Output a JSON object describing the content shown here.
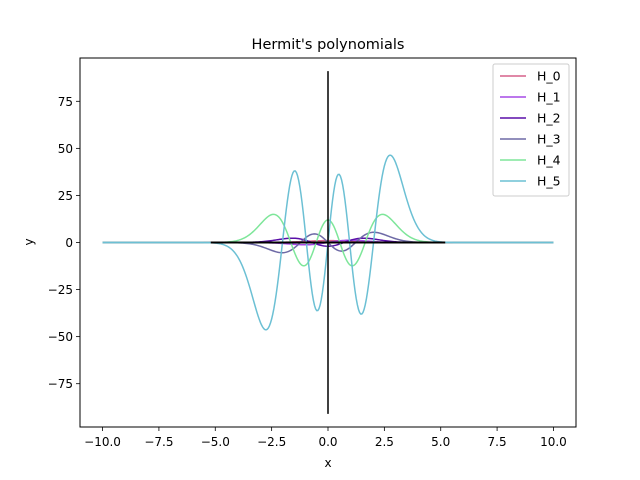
{
  "chart_data": {
    "type": "line",
    "title": "Hermit's polynomials",
    "xlabel": "x",
    "ylabel": "y",
    "xlim": [
      -11.0,
      11.0
    ],
    "ylim": [
      -98,
      98
    ],
    "x_ticks": [
      -10.0,
      -7.5,
      -5.0,
      -2.5,
      0.0,
      2.5,
      5.0,
      7.5,
      10.0
    ],
    "x_tick_labels": [
      "−10.0",
      "−7.5",
      "−5.0",
      "−2.5",
      "0.0",
      "2.5",
      "5.0",
      "7.5",
      "10.0"
    ],
    "y_ticks": [
      -75,
      -50,
      -25,
      0,
      25,
      50,
      75
    ],
    "y_tick_labels": [
      "−75",
      "−50",
      "−25",
      "0",
      "25",
      "50",
      "75"
    ],
    "grid": false,
    "legend_position": "top-right",
    "function": "H_n(x) * exp(-x^2/2)",
    "x_range": [
      -10.0,
      10.0
    ],
    "series": [
      {
        "name": "H_0",
        "order": 0,
        "color": "#d6608a"
      },
      {
        "name": "H_1",
        "order": 1,
        "color": "#a64ae6"
      },
      {
        "name": "H_2",
        "order": 2,
        "color": "#5a0fa8"
      },
      {
        "name": "H_3",
        "order": 3,
        "color": "#6e6aa6"
      },
      {
        "name": "H_4",
        "order": 4,
        "color": "#7ee69a"
      },
      {
        "name": "H_5",
        "order": 5,
        "color": "#6cc0d4"
      }
    ],
    "vertical_line": {
      "x": 0,
      "y_range": [
        -91,
        91
      ],
      "color": "#000000"
    },
    "zero_line": {
      "y": 0,
      "x_range": [
        -5.2,
        5.2
      ],
      "color": "#000000"
    }
  }
}
